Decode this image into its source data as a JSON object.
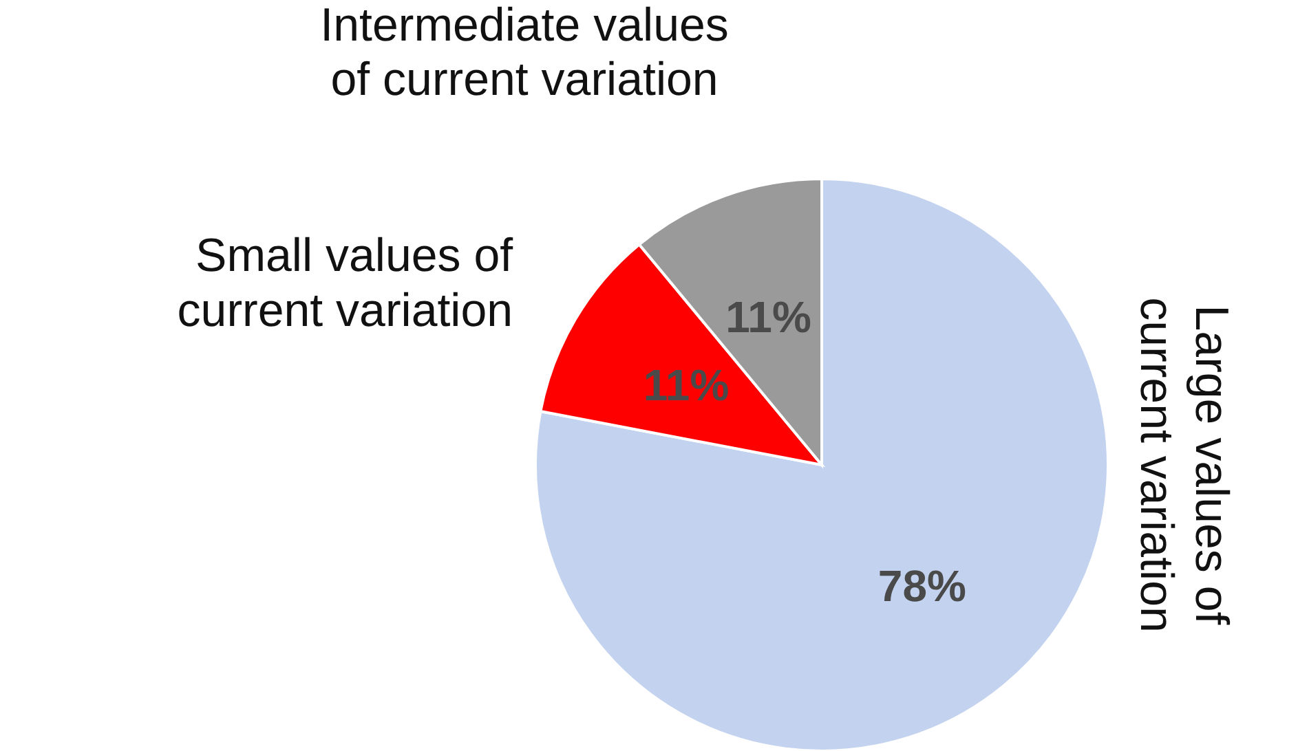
{
  "chart_data": {
    "type": "pie",
    "categories": [
      "Large values of current variation",
      "Small values of current variation",
      "Intermediate values of current variation"
    ],
    "values": [
      78,
      11,
      11
    ],
    "colors": [
      "#c3d2ee",
      "#ff0000",
      "#9a9a9a"
    ],
    "value_labels": [
      "78%",
      "11%",
      "11%"
    ]
  }
}
